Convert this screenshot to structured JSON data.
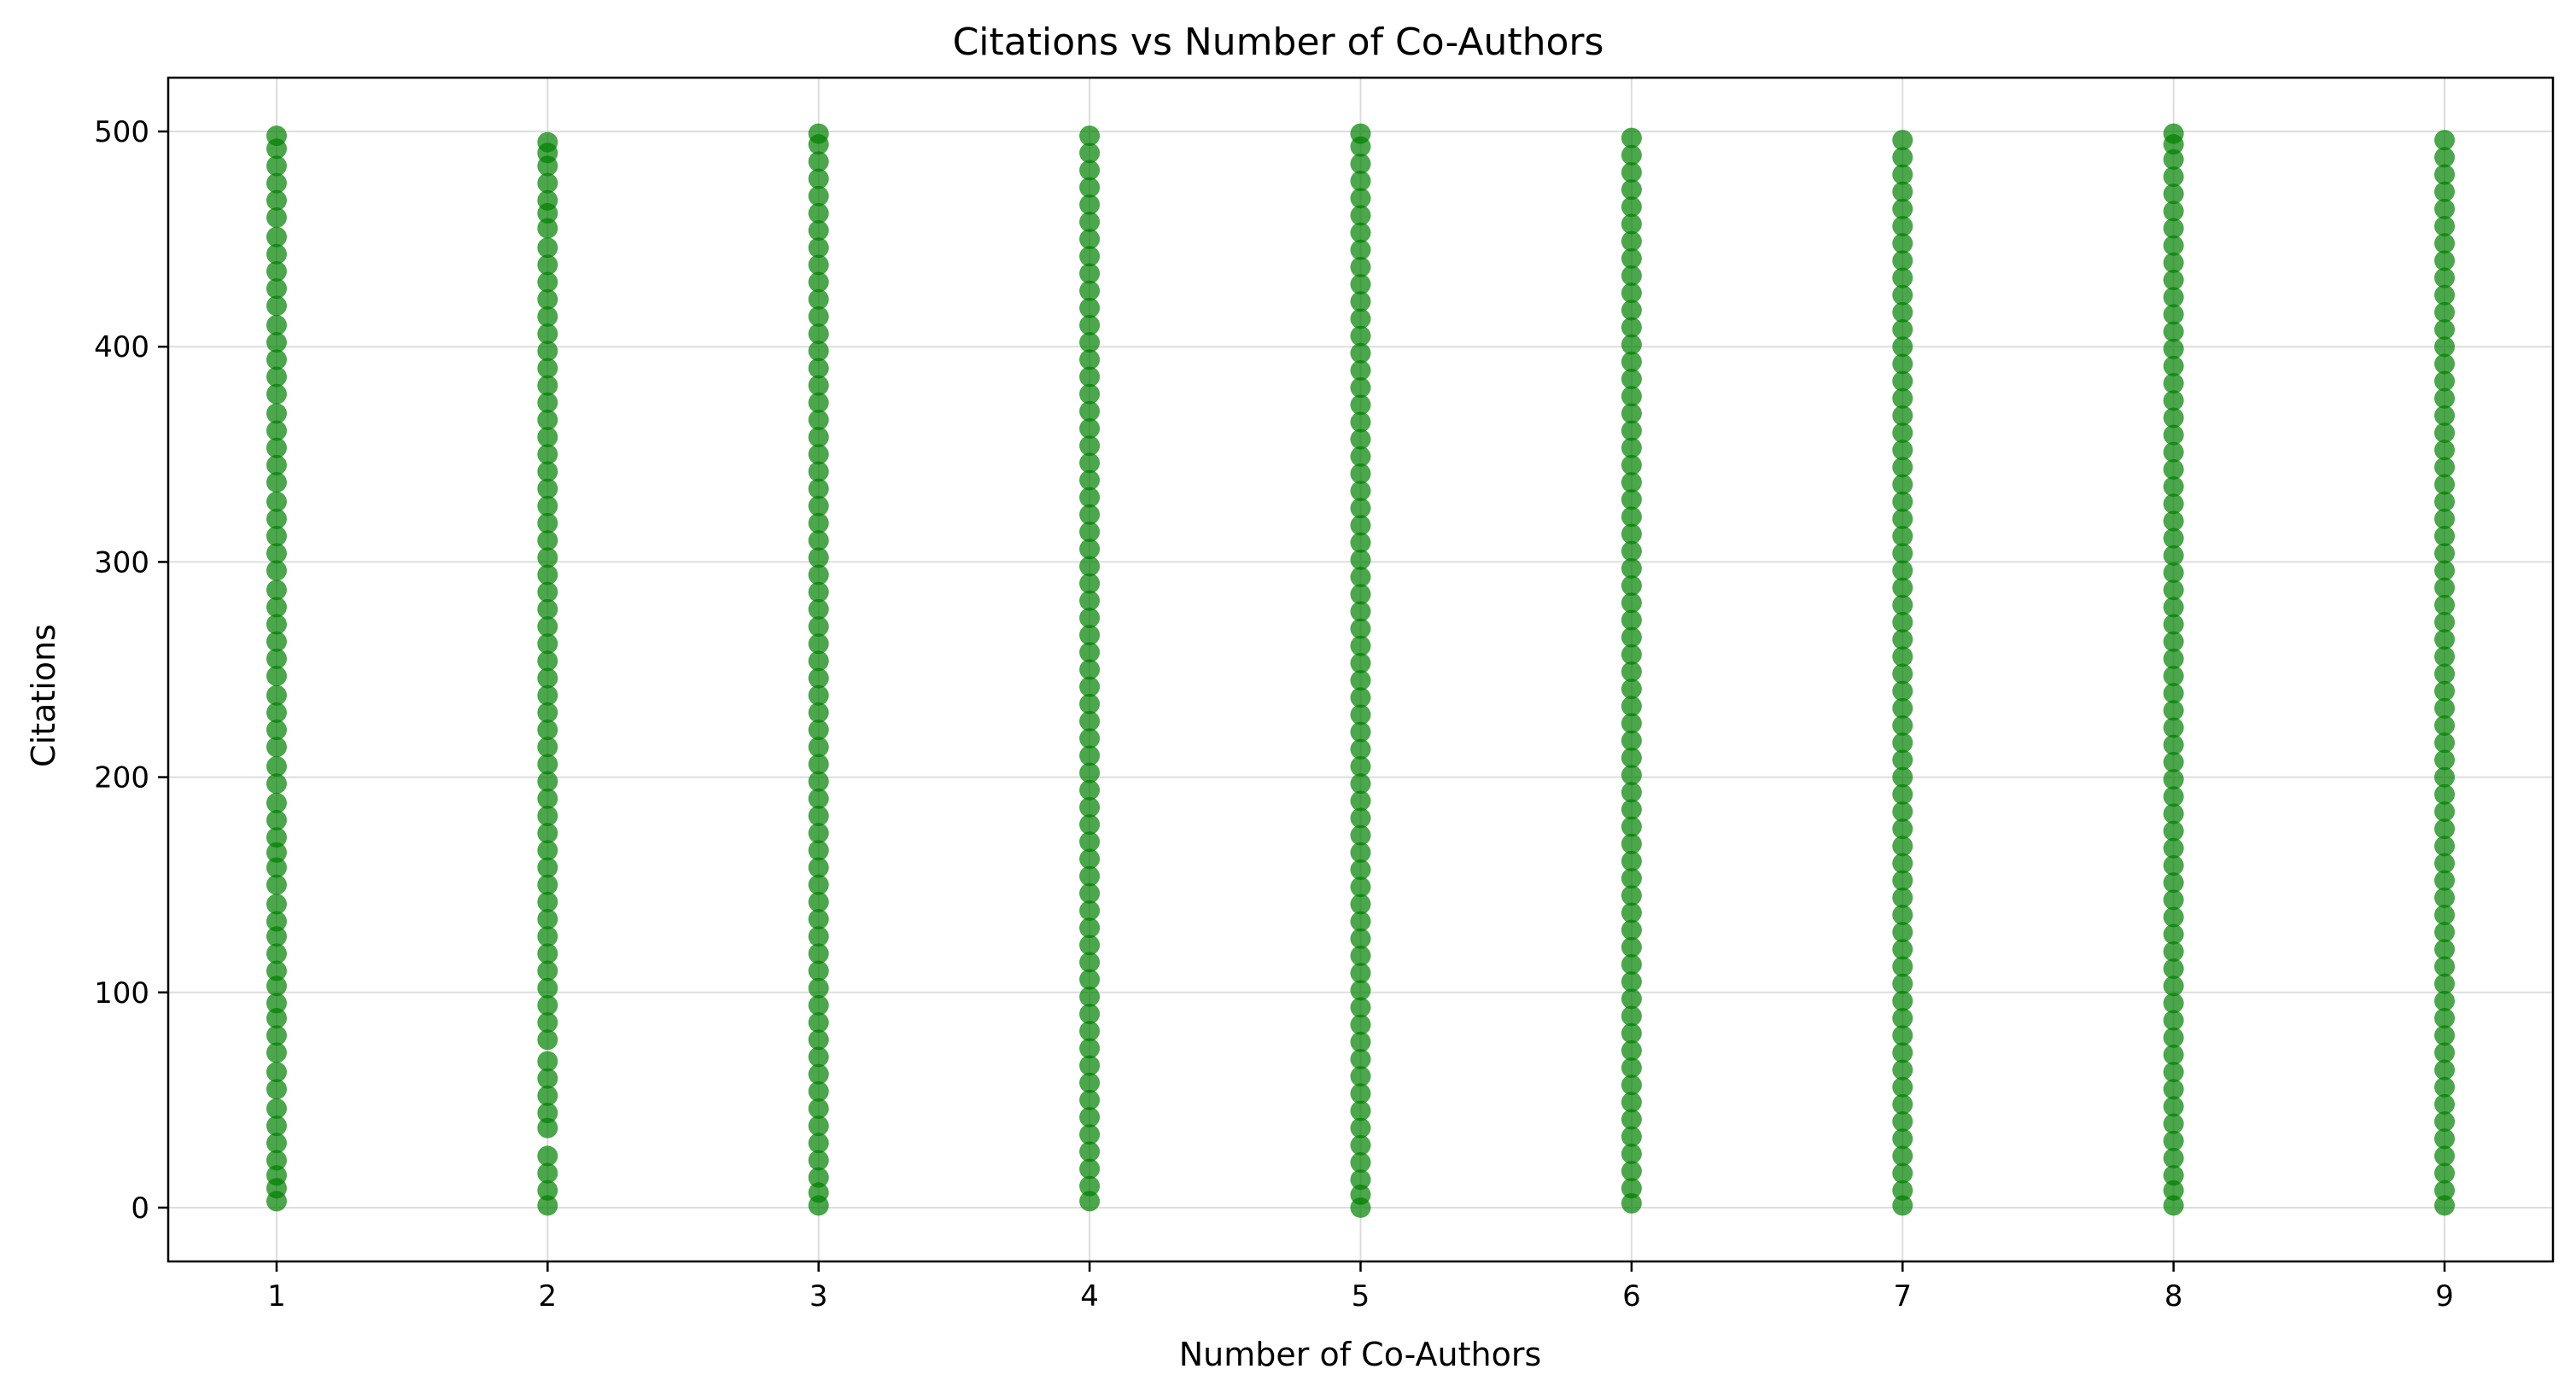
{
  "chart_data": {
    "type": "scatter",
    "title": "Citations vs Number of Co-Authors",
    "xlabel": "Number of Co-Authors",
    "ylabel": "Citations",
    "xlim": [
      0.6,
      9.4
    ],
    "ylim": [
      -25,
      525
    ],
    "x_ticks": [
      1,
      2,
      3,
      4,
      5,
      6,
      7,
      8,
      9
    ],
    "y_ticks": [
      0,
      100,
      200,
      300,
      400,
      500
    ],
    "grid": true,
    "legend": "none",
    "marker_color": "#008000",
    "marker_alpha": 0.7,
    "series": [
      {
        "points_by_x": [
          {
            "x": 1,
            "citations": [
              3,
              9,
              15,
              22,
              30,
              38,
              46,
              55,
              63,
              72,
              80,
              88,
              95,
              103,
              110,
              118,
              126,
              133,
              141,
              150,
              158,
              165,
              172,
              180,
              188,
              197,
              205,
              214,
              222,
              230,
              238,
              247,
              255,
              263,
              271,
              279,
              287,
              296,
              304,
              312,
              320,
              328,
              337,
              345,
              353,
              361,
              369,
              378,
              386,
              394,
              402,
              410,
              419,
              427,
              435,
              443,
              451,
              460,
              468,
              476,
              484,
              492,
              498
            ]
          },
          {
            "x": 2,
            "citations": [
              1,
              8,
              16,
              24,
              37,
              44,
              52,
              60,
              68,
              78,
              86,
              94,
              102,
              110,
              118,
              126,
              134,
              142,
              150,
              158,
              166,
              174,
              182,
              190,
              198,
              206,
              214,
              222,
              230,
              238,
              246,
              254,
              262,
              270,
              278,
              286,
              294,
              302,
              310,
              318,
              326,
              334,
              342,
              350,
              358,
              366,
              374,
              382,
              390,
              398,
              406,
              414,
              422,
              430,
              438,
              446,
              455,
              462,
              468,
              476,
              484,
              490,
              495
            ]
          },
          {
            "x": 3,
            "citations": [
              1,
              7,
              14,
              22,
              30,
              38,
              46,
              54,
              62,
              70,
              78,
              86,
              94,
              102,
              110,
              118,
              126,
              134,
              142,
              150,
              158,
              166,
              174,
              182,
              190,
              198,
              206,
              214,
              222,
              230,
              238,
              246,
              254,
              262,
              270,
              278,
              286,
              294,
              302,
              310,
              318,
              326,
              334,
              342,
              350,
              358,
              366,
              374,
              382,
              390,
              398,
              406,
              414,
              422,
              430,
              438,
              446,
              454,
              462,
              470,
              478,
              486,
              494,
              499
            ]
          },
          {
            "x": 4,
            "citations": [
              3,
              10,
              18,
              26,
              34,
              42,
              50,
              58,
              66,
              74,
              82,
              90,
              98,
              106,
              114,
              122,
              130,
              138,
              146,
              154,
              162,
              170,
              178,
              186,
              194,
              202,
              210,
              218,
              226,
              234,
              242,
              250,
              258,
              266,
              274,
              282,
              290,
              298,
              306,
              314,
              322,
              330,
              338,
              346,
              354,
              362,
              370,
              378,
              386,
              394,
              402,
              410,
              418,
              426,
              434,
              442,
              450,
              458,
              466,
              474,
              482,
              490,
              498
            ]
          },
          {
            "x": 5,
            "citations": [
              0,
              6,
              13,
              21,
              29,
              37,
              45,
              53,
              61,
              69,
              77,
              85,
              93,
              101,
              109,
              117,
              125,
              133,
              141,
              149,
              157,
              165,
              173,
              181,
              189,
              197,
              205,
              213,
              221,
              229,
              237,
              245,
              253,
              261,
              269,
              277,
              285,
              293,
              301,
              309,
              317,
              325,
              333,
              341,
              349,
              357,
              365,
              373,
              381,
              389,
              397,
              405,
              413,
              421,
              429,
              437,
              445,
              453,
              461,
              469,
              477,
              485,
              493,
              499
            ]
          },
          {
            "x": 6,
            "citations": [
              2,
              9,
              17,
              25,
              33,
              41,
              49,
              57,
              65,
              73,
              81,
              89,
              97,
              105,
              113,
              121,
              129,
              137,
              145,
              153,
              161,
              169,
              177,
              185,
              193,
              201,
              209,
              217,
              225,
              233,
              241,
              249,
              257,
              265,
              273,
              281,
              289,
              297,
              305,
              313,
              321,
              329,
              337,
              345,
              353,
              361,
              369,
              377,
              385,
              393,
              401,
              409,
              417,
              425,
              433,
              441,
              449,
              457,
              465,
              473,
              481,
              489,
              497
            ]
          },
          {
            "x": 7,
            "citations": [
              1,
              8,
              16,
              24,
              32,
              40,
              48,
              56,
              64,
              72,
              80,
              88,
              96,
              104,
              112,
              120,
              128,
              136,
              144,
              152,
              160,
              168,
              176,
              184,
              192,
              200,
              208,
              216,
              224,
              232,
              240,
              248,
              256,
              264,
              272,
              280,
              288,
              296,
              304,
              312,
              320,
              328,
              336,
              344,
              352,
              360,
              368,
              376,
              384,
              392,
              400,
              408,
              416,
              424,
              432,
              440,
              448,
              456,
              464,
              472,
              480,
              488,
              496
            ]
          },
          {
            "x": 8,
            "citations": [
              1,
              8,
              15,
              23,
              31,
              39,
              47,
              55,
              63,
              71,
              79,
              87,
              95,
              103,
              111,
              119,
              127,
              135,
              143,
              151,
              159,
              167,
              175,
              183,
              191,
              199,
              207,
              215,
              223,
              231,
              239,
              247,
              255,
              263,
              271,
              279,
              287,
              295,
              303,
              311,
              319,
              327,
              335,
              343,
              351,
              359,
              367,
              375,
              383,
              391,
              399,
              407,
              415,
              423,
              431,
              439,
              447,
              455,
              463,
              471,
              479,
              487,
              494,
              499
            ]
          },
          {
            "x": 9,
            "citations": [
              1,
              8,
              16,
              24,
              32,
              40,
              48,
              56,
              64,
              72,
              80,
              88,
              96,
              104,
              112,
              120,
              128,
              136,
              144,
              152,
              160,
              168,
              176,
              184,
              192,
              200,
              208,
              216,
              224,
              232,
              240,
              248,
              256,
              264,
              272,
              280,
              288,
              296,
              304,
              312,
              320,
              328,
              336,
              344,
              352,
              360,
              368,
              376,
              384,
              392,
              400,
              408,
              416,
              424,
              432,
              440,
              448,
              456,
              464,
              472,
              480,
              488,
              496
            ]
          }
        ]
      }
    ]
  }
}
